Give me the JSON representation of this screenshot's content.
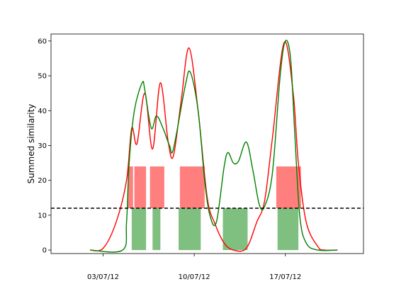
{
  "chart_data": {
    "type": "line",
    "ylabel": "Summed similarity",
    "xlabel": "",
    "xlim": [
      "2012-06-29",
      "2012-07-23"
    ],
    "ylim": [
      -1,
      62
    ],
    "yticks": [
      0,
      10,
      20,
      30,
      40,
      50,
      60
    ],
    "xticks": [
      {
        "date": "2012-07-03",
        "label": "03/07/12"
      },
      {
        "date": "2012-07-10",
        "label": "10/07/12"
      },
      {
        "date": "2012-07-17",
        "label": "17/07/12"
      }
    ],
    "threshold": {
      "value": 12,
      "style": "dashed",
      "color": "#000000"
    },
    "colors": {
      "red": "#ff0000",
      "green": "#008000",
      "red_fill": "#ff7f7f",
      "green_fill": "#7fbf7f"
    },
    "series": [
      {
        "color": "#ff0000",
        "points": [
          [
            "2012-07-02",
            0
          ],
          [
            "2012-07-03",
            0.5
          ],
          [
            "2012-07-04",
            8
          ],
          [
            "2012-07-04.8",
            20
          ],
          [
            "2012-07-05.2",
            35
          ],
          [
            "2012-07-05.6",
            30.5
          ],
          [
            "2012-07-06.2",
            45
          ],
          [
            "2012-07-06.8",
            29
          ],
          [
            "2012-07-07.4",
            48
          ],
          [
            "2012-07-08",
            31
          ],
          [
            "2012-07-08.4",
            27
          ],
          [
            "2012-07-09",
            43
          ],
          [
            "2012-07-09.6",
            58
          ],
          [
            "2012-07-10.3",
            40
          ],
          [
            "2012-07-11",
            15
          ],
          [
            "2012-07-11.6",
            7.5
          ],
          [
            "2012-07-12.3",
            2
          ],
          [
            "2012-07-13",
            0
          ],
          [
            "2012-07-14",
            0.5
          ],
          [
            "2012-07-14.8",
            8
          ],
          [
            "2012-07-15.4",
            14
          ],
          [
            "2012-07-16",
            32
          ],
          [
            "2012-07-16.9",
            59.5
          ],
          [
            "2012-07-17.6",
            45
          ],
          [
            "2012-07-18",
            25
          ],
          [
            "2012-07-18.6",
            8
          ],
          [
            "2012-07-19.5",
            1
          ],
          [
            "2012-07-20",
            0
          ],
          [
            "2012-07-21",
            0
          ]
        ]
      },
      {
        "color": "#008000",
        "points": [
          [
            "2012-07-02",
            0
          ],
          [
            "2012-07-04.5",
            0
          ],
          [
            "2012-07-04.8",
            8
          ],
          [
            "2012-07-05",
            25
          ],
          [
            "2012-07-05.4",
            40
          ],
          [
            "2012-07-06",
            48
          ],
          [
            "2012-07-06.2",
            46
          ],
          [
            "2012-07-06.7",
            35
          ],
          [
            "2012-07-07.1",
            38.5
          ],
          [
            "2012-07-07.6",
            35
          ],
          [
            "2012-07-08.1",
            30
          ],
          [
            "2012-07-08.4",
            29
          ],
          [
            "2012-07-09.3",
            47
          ],
          [
            "2012-07-09.7",
            51
          ],
          [
            "2012-07-10.3",
            40
          ],
          [
            "2012-07-10.8",
            20
          ],
          [
            "2012-07-11.2",
            10
          ],
          [
            "2012-07-11.7",
            8
          ],
          [
            "2012-07-12.3",
            24
          ],
          [
            "2012-07-12.6",
            28
          ],
          [
            "2012-07-13",
            25
          ],
          [
            "2012-07-13.4",
            25.5
          ],
          [
            "2012-07-14",
            31
          ],
          [
            "2012-07-14.5",
            23
          ],
          [
            "2012-07-15",
            13
          ],
          [
            "2012-07-15.4",
            12.5
          ],
          [
            "2012-07-16",
            22
          ],
          [
            "2012-07-16.6",
            50
          ],
          [
            "2012-07-17",
            60
          ],
          [
            "2012-07-17.4",
            55
          ],
          [
            "2012-07-17.7",
            35
          ],
          [
            "2012-07-18.1",
            10
          ],
          [
            "2012-07-18.6",
            2
          ],
          [
            "2012-07-19.5",
            0
          ],
          [
            "2012-07-21",
            0
          ]
        ]
      }
    ],
    "red_spans": [
      {
        "start": "2012-07-04.9",
        "end": "2012-07-05.3",
        "y_from": 12,
        "y_to": 24
      },
      {
        "start": "2012-07-05.4",
        "end": "2012-07-06.3",
        "y_from": 12,
        "y_to": 24
      },
      {
        "start": "2012-07-06.6",
        "end": "2012-07-07.7",
        "y_from": 12,
        "y_to": 24
      },
      {
        "start": "2012-07-08.9",
        "end": "2012-07-10.8",
        "y_from": 12,
        "y_to": 24
      },
      {
        "start": "2012-07-16.3",
        "end": "2012-07-18.2",
        "y_from": 12,
        "y_to": 24
      }
    ],
    "green_spans": [
      {
        "start": "2012-07-05.2",
        "end": "2012-07-06.3",
        "y_from": 0,
        "y_to": 12
      },
      {
        "start": "2012-07-06.8",
        "end": "2012-07-07.4",
        "y_from": 0,
        "y_to": 12
      },
      {
        "start": "2012-07-08.8",
        "end": "2012-07-10.5",
        "y_from": 0,
        "y_to": 12
      },
      {
        "start": "2012-07-12.2",
        "end": "2012-07-14.1",
        "y_from": 0,
        "y_to": 12
      },
      {
        "start": "2012-07-16.4",
        "end": "2012-07-18",
        "y_from": 0,
        "y_to": 12
      }
    ]
  }
}
